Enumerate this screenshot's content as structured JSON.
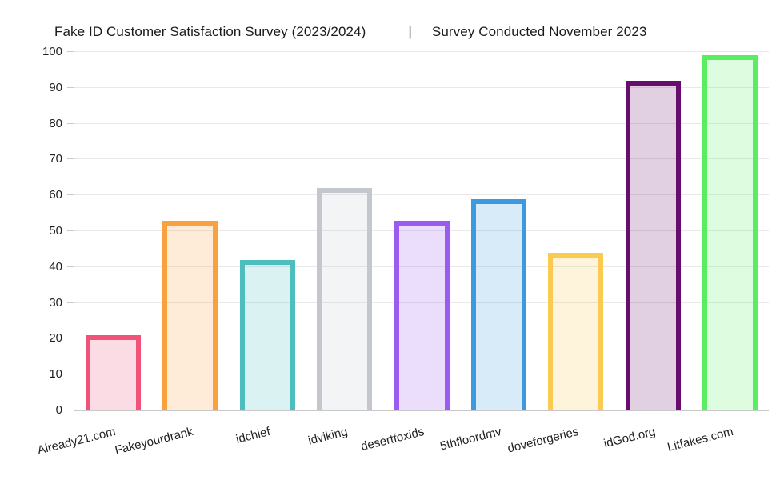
{
  "title": {
    "left": "Fake ID Customer Satisfaction Survey (2023/2024)",
    "separator": "|",
    "right": "Survey Conducted November 2023"
  },
  "chart_data": {
    "type": "bar",
    "title": "Fake ID Customer Satisfaction Survey (2023/2024) | Survey Conducted November 2023",
    "categories": [
      "Already21.com",
      "Fakeyourdrank",
      "idchief",
      "idviking",
      "desertfoxids",
      "5thfloordmv",
      "doveforgeries",
      "idGod.org",
      "Litfakes.com"
    ],
    "values": [
      21,
      53,
      42,
      62,
      53,
      59,
      44,
      92,
      99
    ],
    "bar_border_colors": [
      "#F0527A",
      "#F9A13F",
      "#4BBEBD",
      "#C4C7CD",
      "#9C5BF0",
      "#3D9AE1",
      "#FACA51",
      "#670D6F",
      "#59EE62"
    ],
    "fill_opacity": 0.2,
    "xlabel": "",
    "ylabel": "",
    "ylim": [
      0,
      100
    ],
    "yticks": [
      0,
      10,
      20,
      30,
      40,
      50,
      60,
      70,
      80,
      90,
      100
    ],
    "grid": true,
    "legend": false
  }
}
